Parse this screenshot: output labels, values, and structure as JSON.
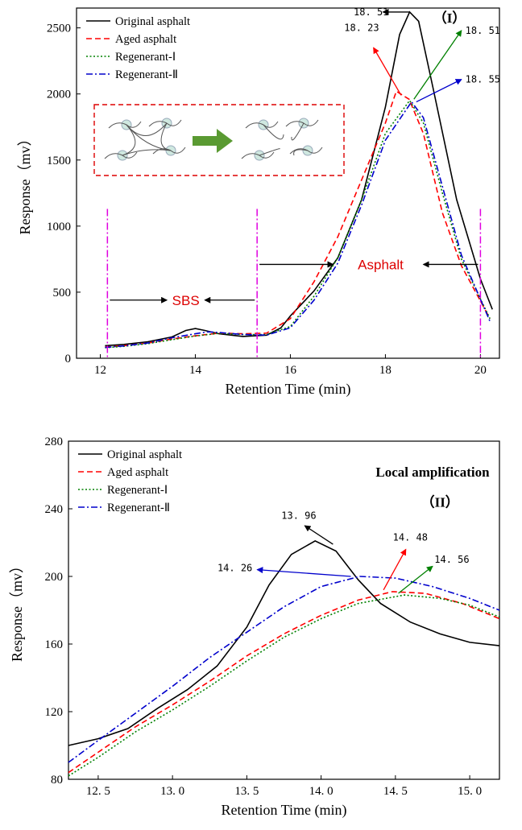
{
  "colors": {
    "original": "#000000",
    "aged": "#ff0000",
    "regen1": "#008000",
    "regen2": "#0000cc",
    "marker": "#e000e0",
    "inset_border": "#dd0000",
    "inset_arrow": "#5a9a32"
  },
  "chart_data": [
    {
      "type": "line",
      "panel_label": "（I）",
      "xlabel": "Retention Time (min)",
      "ylabel": "Response（mv）",
      "xlim": [
        11.5,
        20.4
      ],
      "ylim": [
        0,
        2650
      ],
      "xticks": [
        12,
        14,
        16,
        18,
        20
      ],
      "yticks": [
        0,
        500,
        1000,
        1500,
        2000,
        2500
      ],
      "grid": false,
      "legend_position": "top-left",
      "series": [
        {
          "name": "Original asphalt",
          "style": "solid",
          "color_key": "original",
          "points": [
            [
              12.1,
              95
            ],
            [
              12.5,
              105
            ],
            [
              13,
              125
            ],
            [
              13.5,
              160
            ],
            [
              13.8,
              210
            ],
            [
              14.0,
              225
            ],
            [
              14.2,
              210
            ],
            [
              14.5,
              185
            ],
            [
              15.0,
              165
            ],
            [
              15.5,
              175
            ],
            [
              15.8,
              230
            ],
            [
              16.0,
              320
            ],
            [
              16.5,
              510
            ],
            [
              17.0,
              760
            ],
            [
              17.5,
              1200
            ],
            [
              18.0,
              1900
            ],
            [
              18.3,
              2450
            ],
            [
              18.51,
              2620
            ],
            [
              18.7,
              2550
            ],
            [
              19.0,
              2050
            ],
            [
              19.5,
              1200
            ],
            [
              20.0,
              600
            ],
            [
              20.25,
              370
            ]
          ]
        },
        {
          "name": "Aged asphalt",
          "style": "dashed",
          "color_key": "aged",
          "points": [
            [
              12.1,
              85
            ],
            [
              12.5,
              95
            ],
            [
              13,
              115
            ],
            [
              13.5,
              145
            ],
            [
              14.0,
              170
            ],
            [
              14.5,
              190
            ],
            [
              15.0,
              185
            ],
            [
              15.5,
              190
            ],
            [
              16.0,
              300
            ],
            [
              16.5,
              580
            ],
            [
              17.0,
              920
            ],
            [
              17.5,
              1350
            ],
            [
              18.0,
              1780
            ],
            [
              18.23,
              2020
            ],
            [
              18.5,
              1960
            ],
            [
              18.8,
              1700
            ],
            [
              19.2,
              1100
            ],
            [
              19.6,
              700
            ],
            [
              20.2,
              300
            ]
          ]
        },
        {
          "name": "Regenerant-Ⅰ",
          "style": "dotted",
          "color_key": "regen1",
          "points": [
            [
              12.1,
              80
            ],
            [
              12.5,
              90
            ],
            [
              13,
              110
            ],
            [
              13.5,
              140
            ],
            [
              14.0,
              168
            ],
            [
              14.5,
              188
            ],
            [
              15.0,
              180
            ],
            [
              15.5,
              180
            ],
            [
              16.0,
              240
            ],
            [
              16.5,
              470
            ],
            [
              17.0,
              760
            ],
            [
              17.5,
              1200
            ],
            [
              18.0,
              1700
            ],
            [
              18.51,
              1950
            ],
            [
              18.8,
              1780
            ],
            [
              19.2,
              1250
            ],
            [
              19.6,
              750
            ],
            [
              20.2,
              300
            ]
          ]
        },
        {
          "name": "Regenerant-Ⅱ",
          "style": "dashdot",
          "color_key": "regen2",
          "points": [
            [
              12.1,
              82
            ],
            [
              12.5,
              93
            ],
            [
              13,
              115
            ],
            [
              13.5,
              155
            ],
            [
              14.0,
              185
            ],
            [
              14.26,
              200
            ],
            [
              14.5,
              195
            ],
            [
              15.0,
              180
            ],
            [
              15.5,
              175
            ],
            [
              16.0,
              230
            ],
            [
              16.5,
              440
            ],
            [
              17.0,
              720
            ],
            [
              17.5,
              1160
            ],
            [
              18.0,
              1650
            ],
            [
              18.55,
              1940
            ],
            [
              18.8,
              1820
            ],
            [
              19.2,
              1300
            ],
            [
              19.6,
              780
            ],
            [
              20.2,
              280
            ]
          ]
        }
      ],
      "peak_annotations": [
        {
          "text": "18. 51",
          "color_key": "original"
        },
        {
          "text": "18. 23",
          "color_key": "aged"
        },
        {
          "text": "18. 51",
          "color_key": "regen1"
        },
        {
          "text": "18. 55",
          "color_key": "regen2"
        }
      ],
      "region_markers_x": [
        12.15,
        15.3,
        20.0
      ],
      "region_labels": [
        "SBS",
        "Asphalt"
      ]
    },
    {
      "type": "line",
      "panel_label": "Local amplification",
      "panel_sublabel": "（II）",
      "xlabel": "Retention Time (min)",
      "ylabel": "Response（mv）",
      "xlim": [
        12.3,
        15.2
      ],
      "ylim": [
        80,
        280
      ],
      "xticks": [
        12.5,
        13.0,
        13.5,
        14.0,
        14.5,
        15.0
      ],
      "xtick_labels": [
        "12. 5",
        "13. 0",
        "13. 5",
        "14. 0",
        "14. 5",
        "15. 0"
      ],
      "yticks": [
        80,
        120,
        160,
        200,
        240,
        280
      ],
      "grid": false,
      "legend_position": "top-left",
      "series": [
        {
          "name": "Original asphalt",
          "style": "solid",
          "color_key": "original",
          "points": [
            [
              12.3,
              100
            ],
            [
              12.5,
              104
            ],
            [
              12.7,
              110
            ],
            [
              12.9,
              122
            ],
            [
              13.1,
              133
            ],
            [
              13.3,
              147
            ],
            [
              13.5,
              170
            ],
            [
              13.65,
              195
            ],
            [
              13.8,
              213
            ],
            [
              13.96,
              221
            ],
            [
              14.1,
              215
            ],
            [
              14.25,
              198
            ],
            [
              14.4,
              184
            ],
            [
              14.6,
              173
            ],
            [
              14.8,
              166
            ],
            [
              15.0,
              161
            ],
            [
              15.2,
              159
            ]
          ]
        },
        {
          "name": "Aged asphalt",
          "style": "dashed",
          "color_key": "aged",
          "points": [
            [
              12.3,
              84
            ],
            [
              12.5,
              96
            ],
            [
              12.75,
              111
            ],
            [
              13.0,
              124
            ],
            [
              13.25,
              138
            ],
            [
              13.5,
              153
            ],
            [
              13.75,
              166
            ],
            [
              14.0,
              177
            ],
            [
              14.25,
              186
            ],
            [
              14.48,
              191
            ],
            [
              14.7,
              190
            ],
            [
              14.95,
              184
            ],
            [
              15.2,
              175
            ]
          ]
        },
        {
          "name": "Regenerant-Ⅰ",
          "style": "dotted",
          "color_key": "regen1",
          "points": [
            [
              12.3,
              82
            ],
            [
              12.5,
              93
            ],
            [
              12.75,
              108
            ],
            [
              13.0,
              121
            ],
            [
              13.25,
              135
            ],
            [
              13.5,
              150
            ],
            [
              13.75,
              164
            ],
            [
              14.0,
              175
            ],
            [
              14.25,
              184
            ],
            [
              14.56,
              189
            ],
            [
              14.8,
              187
            ],
            [
              15.0,
              183
            ],
            [
              15.2,
              176
            ]
          ]
        },
        {
          "name": "Regenerant-Ⅱ",
          "style": "dashdot",
          "color_key": "regen2",
          "points": [
            [
              12.3,
              90
            ],
            [
              12.5,
              103
            ],
            [
              12.75,
              119
            ],
            [
              13.0,
              135
            ],
            [
              13.25,
              152
            ],
            [
              13.5,
              167
            ],
            [
              13.75,
              182
            ],
            [
              14.0,
              194
            ],
            [
              14.26,
              200
            ],
            [
              14.5,
              199
            ],
            [
              14.75,
              194
            ],
            [
              15.0,
              187
            ],
            [
              15.2,
              180
            ]
          ]
        }
      ],
      "peak_annotations": [
        {
          "text": "13. 96",
          "color_key": "original"
        },
        {
          "text": "14. 48",
          "color_key": "aged"
        },
        {
          "text": "14. 56",
          "color_key": "regen1"
        },
        {
          "text": "14. 26",
          "color_key": "regen2"
        }
      ]
    }
  ]
}
